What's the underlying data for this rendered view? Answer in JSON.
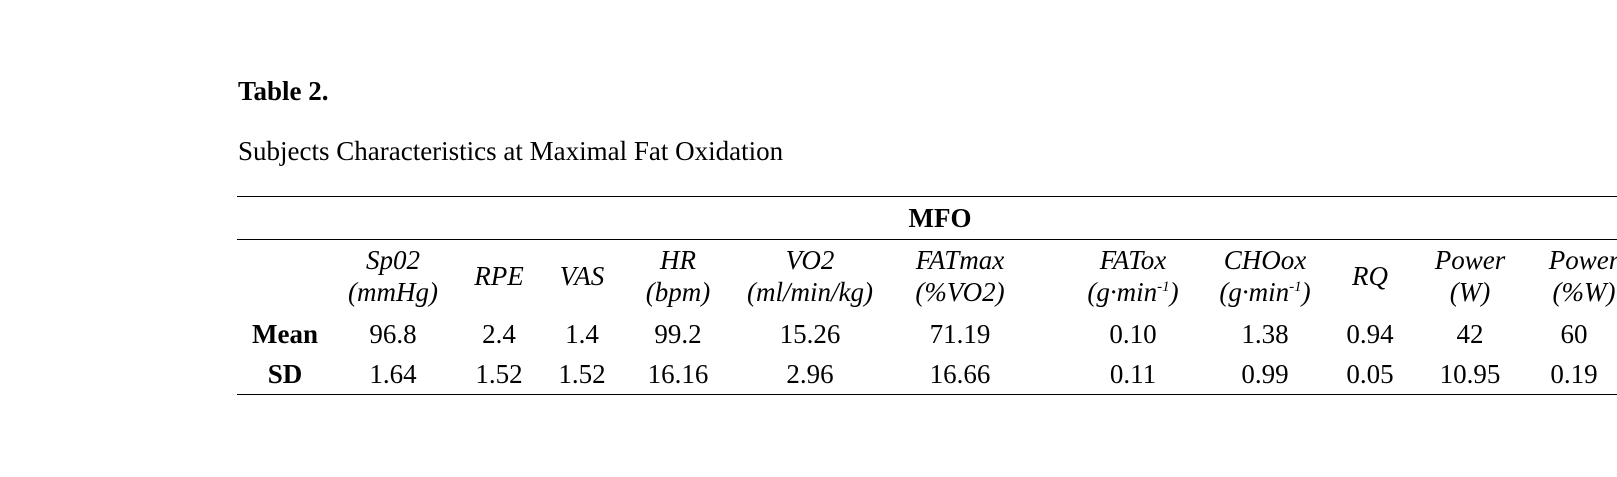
{
  "table": {
    "number": "Table 2.",
    "title": "Subjects Characteristics at Maximal Fat Oxidation",
    "group_header": "MFO",
    "columns": [
      {
        "name": "Sp02",
        "unit": "(mmHg)"
      },
      {
        "name": "RPE",
        "unit": ""
      },
      {
        "name": "VAS",
        "unit": ""
      },
      {
        "name": "HR",
        "unit": "(bpm)"
      },
      {
        "name": "VO2",
        "unit": "(ml/min/kg)"
      },
      {
        "name": "FATmax",
        "unit": "(%VO2)"
      },
      {
        "name": "FATox",
        "unit_base": "(g·min",
        "unit_sup": "-1",
        "unit_end": ")"
      },
      {
        "name": "CHOox",
        "unit_base": "(g·min",
        "unit_sup": "-1",
        "unit_end": ")"
      },
      {
        "name": "RQ",
        "unit": ""
      },
      {
        "name": "Power",
        "unit": "(W)"
      },
      {
        "name": "Power",
        "unit": "(%W)"
      }
    ],
    "rows": [
      {
        "label": "Mean",
        "values": [
          "96.8",
          "2.4",
          "1.4",
          "99.2",
          "15.26",
          "71.19",
          "0.10",
          "1.38",
          "0.94",
          "42",
          "60"
        ]
      },
      {
        "label": "SD",
        "values": [
          "1.64",
          "1.52",
          "1.52",
          "16.16",
          "2.96",
          "16.66",
          "0.11",
          "0.99",
          "0.05",
          "10.95",
          "0.19"
        ]
      }
    ]
  }
}
